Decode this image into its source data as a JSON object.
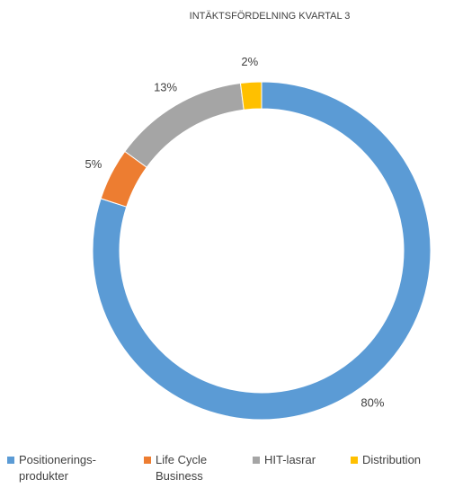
{
  "chart_data": {
    "type": "donut",
    "title": "INTÄKTSFÖRDELNING KVARTAL 3",
    "categories": [
      "Positionerings-\nprodukter",
      "Life Cycle\nBusiness",
      "HIT-lasrar",
      "Distribution"
    ],
    "values": [
      80,
      5,
      13,
      2
    ],
    "value_labels": [
      "80%",
      "5%",
      "13%",
      "2%"
    ],
    "colors": [
      "#5b9bd5",
      "#ed7d31",
      "#a5a5a5",
      "#ffc000"
    ],
    "legend": "bottom"
  }
}
